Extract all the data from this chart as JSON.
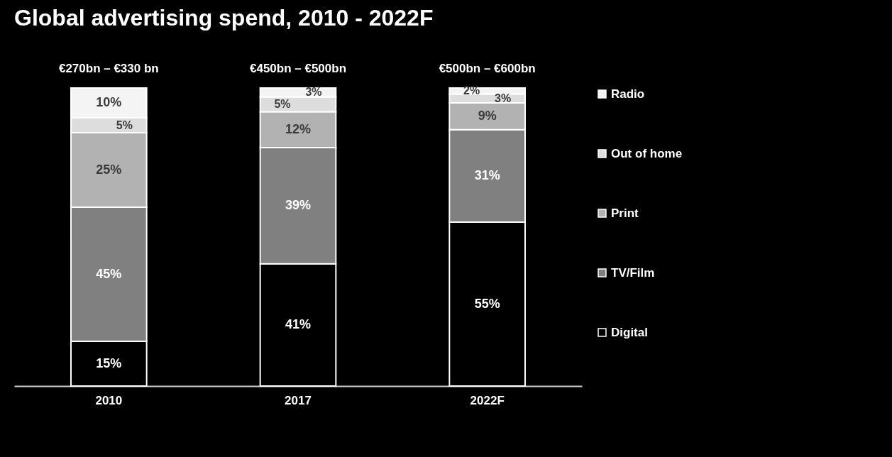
{
  "chart_data": {
    "type": "bar",
    "title": "Global advertising spend, 2010 - 2022F",
    "categories": [
      "2010",
      "2017",
      "2022F"
    ],
    "stacked": true,
    "legend": "right",
    "series": [
      {
        "name": "Digital",
        "color": "#000000",
        "values": [
          15,
          41,
          55
        ],
        "value_labels": [
          "15%",
          "41%",
          "55%"
        ]
      },
      {
        "name": "TV/Film",
        "color": "#808080",
        "values": [
          45,
          39,
          31
        ],
        "value_labels": [
          "45%",
          "39%",
          "31%"
        ]
      },
      {
        "name": "Print",
        "color": "#b2b2b2",
        "values": [
          25,
          12,
          9
        ],
        "value_labels": [
          "25%",
          "12%",
          "9%"
        ]
      },
      {
        "name": "Out of home",
        "color": "#dddddd",
        "values": [
          5,
          5,
          3
        ],
        "value_labels": [
          "5%",
          "5%",
          "3%"
        ]
      },
      {
        "name": "Radio",
        "color": "#f4f4f4",
        "values": [
          10,
          3,
          2
        ],
        "value_labels": [
          "10%",
          "3%",
          "2%"
        ]
      }
    ],
    "totals": [
      "€270bn – €330 bn",
      "€450bn – €500bn",
      "€500bn – €600bn"
    ]
  }
}
